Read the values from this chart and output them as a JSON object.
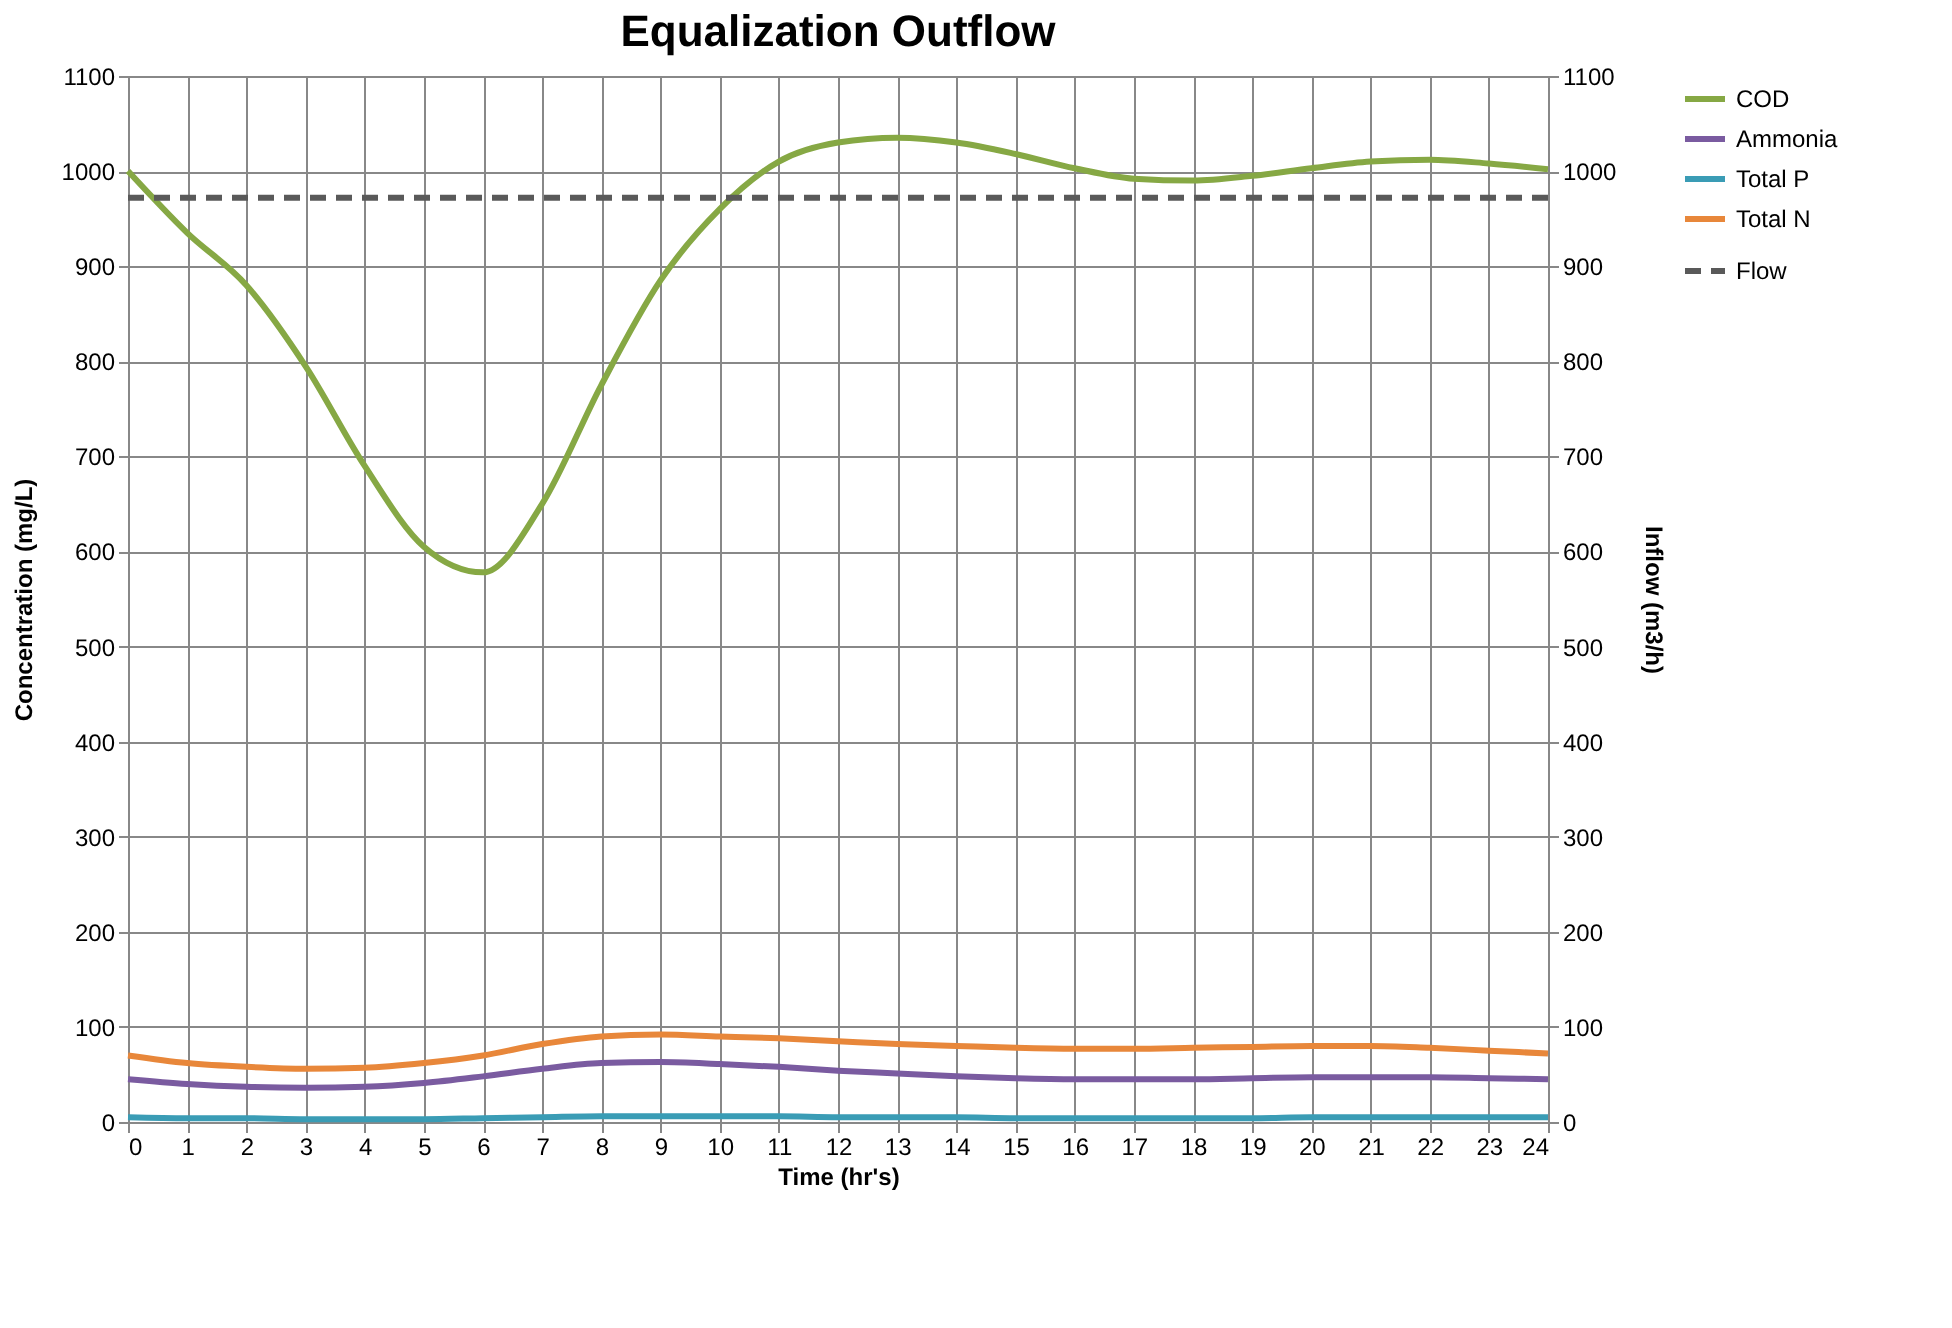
{
  "chart_data": {
    "type": "line",
    "title": "Equalization Outflow",
    "xlabel": "Time (hr's)",
    "ylabel": "Concentration (mg/L)",
    "y2label": "Inflow (m3/h)",
    "x": [
      0,
      1,
      2,
      3,
      4,
      5,
      6,
      7,
      8,
      9,
      10,
      11,
      12,
      13,
      14,
      15,
      16,
      17,
      18,
      19,
      20,
      21,
      22,
      23,
      24
    ],
    "series": [
      {
        "name": "COD",
        "color": "#86a844",
        "values": [
          1000,
          935,
          880,
          795,
          690,
          605,
          578,
          650,
          775,
          885,
          960,
          1010,
          1030,
          1035,
          1030,
          1018,
          1003,
          992,
          990,
          995,
          1003,
          1010,
          1012,
          1008,
          1002
        ]
      },
      {
        "name": "Ammonia",
        "color": "#7a5ba0",
        "values": [
          45,
          40,
          37,
          36,
          37,
          41,
          48,
          56,
          62,
          63,
          61,
          58,
          54,
          51,
          48,
          46,
          45,
          45,
          45,
          46,
          47,
          47,
          47,
          46,
          45
        ]
      },
      {
        "name": "Total P",
        "color": "#3a9cb5",
        "values": [
          5,
          4,
          4,
          3,
          3,
          3,
          4,
          5,
          6,
          6,
          6,
          6,
          5,
          5,
          5,
          4,
          4,
          4,
          4,
          4,
          5,
          5,
          5,
          5,
          5
        ]
      },
      {
        "name": "Total N",
        "color": "#e8873a",
        "values": [
          70,
          62,
          58,
          56,
          57,
          62,
          70,
          82,
          90,
          92,
          90,
          88,
          85,
          82,
          80,
          78,
          77,
          77,
          78,
          79,
          80,
          80,
          78,
          75,
          72
        ]
      },
      {
        "name": "Flow",
        "color": "#595959",
        "axis": "y2",
        "line_style": "dashed",
        "values": [
          972,
          972,
          972,
          972,
          972,
          972,
          972,
          972,
          972,
          972,
          972,
          972,
          972,
          972,
          972,
          972,
          972,
          972,
          972,
          972,
          972,
          972,
          972,
          972,
          972
        ]
      }
    ],
    "xlim": [
      0,
      24
    ],
    "xticks": [
      0,
      1,
      2,
      3,
      4,
      5,
      6,
      7,
      8,
      9,
      10,
      11,
      12,
      13,
      14,
      15,
      16,
      17,
      18,
      19,
      20,
      21,
      22,
      23,
      24
    ],
    "ylim": [
      0,
      1100
    ],
    "yticks": [
      0,
      100,
      200,
      300,
      400,
      500,
      600,
      700,
      800,
      900,
      1000,
      1100
    ],
    "y2lim": [
      0,
      1100
    ],
    "y2ticks": [
      0,
      100,
      200,
      300,
      400,
      500,
      600,
      700,
      800,
      900,
      1000,
      1100
    ],
    "grid": true,
    "legend": "right",
    "marker": "none",
    "line_style": "solid"
  }
}
